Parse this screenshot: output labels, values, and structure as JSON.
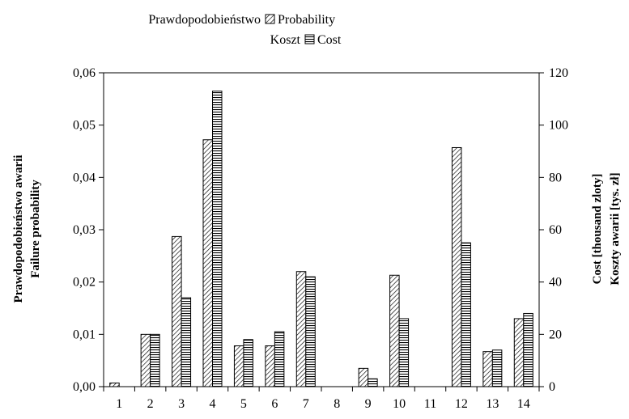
{
  "chart_data": {
    "type": "bar",
    "categories": [
      "1",
      "2",
      "3",
      "4",
      "5",
      "6",
      "7",
      "8",
      "9",
      "10",
      "11",
      "12",
      "13",
      "14"
    ],
    "series": [
      {
        "name": "Probability",
        "legend_label_pl": "Prawdopodobieństwo",
        "axis": "left",
        "pattern": "diagonal-hatch",
        "values": [
          0.0007,
          0.01,
          0.0287,
          0.0472,
          0.0078,
          0.0078,
          0.022,
          0.0,
          0.0035,
          0.0213,
          0.0,
          0.0457,
          0.0067,
          0.013
        ]
      },
      {
        "name": "Cost",
        "legend_label_pl": "Koszt",
        "axis": "right",
        "pattern": "horizontal-stripes",
        "values": [
          0,
          20,
          34,
          113,
          18,
          21,
          42,
          0,
          3,
          26,
          0,
          55,
          14,
          28
        ]
      }
    ],
    "y_left": {
      "label_line1": "Prawdopodobieństwo awarii",
      "label_line2": "Failure probability",
      "ylim": [
        0,
        0.06
      ],
      "ticks": [
        "0,00",
        "0,01",
        "0,02",
        "0,03",
        "0,04",
        "0,05",
        "0,06"
      ]
    },
    "y_right": {
      "label_line1": "Cost [thousand zloty]",
      "label_line2": "Koszty awarii [tys. zł]",
      "ylim": [
        0,
        120
      ],
      "ticks": [
        "0",
        "20",
        "40",
        "60",
        "80",
        "100",
        "120"
      ]
    },
    "grid": false,
    "legend_position": "top-center"
  }
}
